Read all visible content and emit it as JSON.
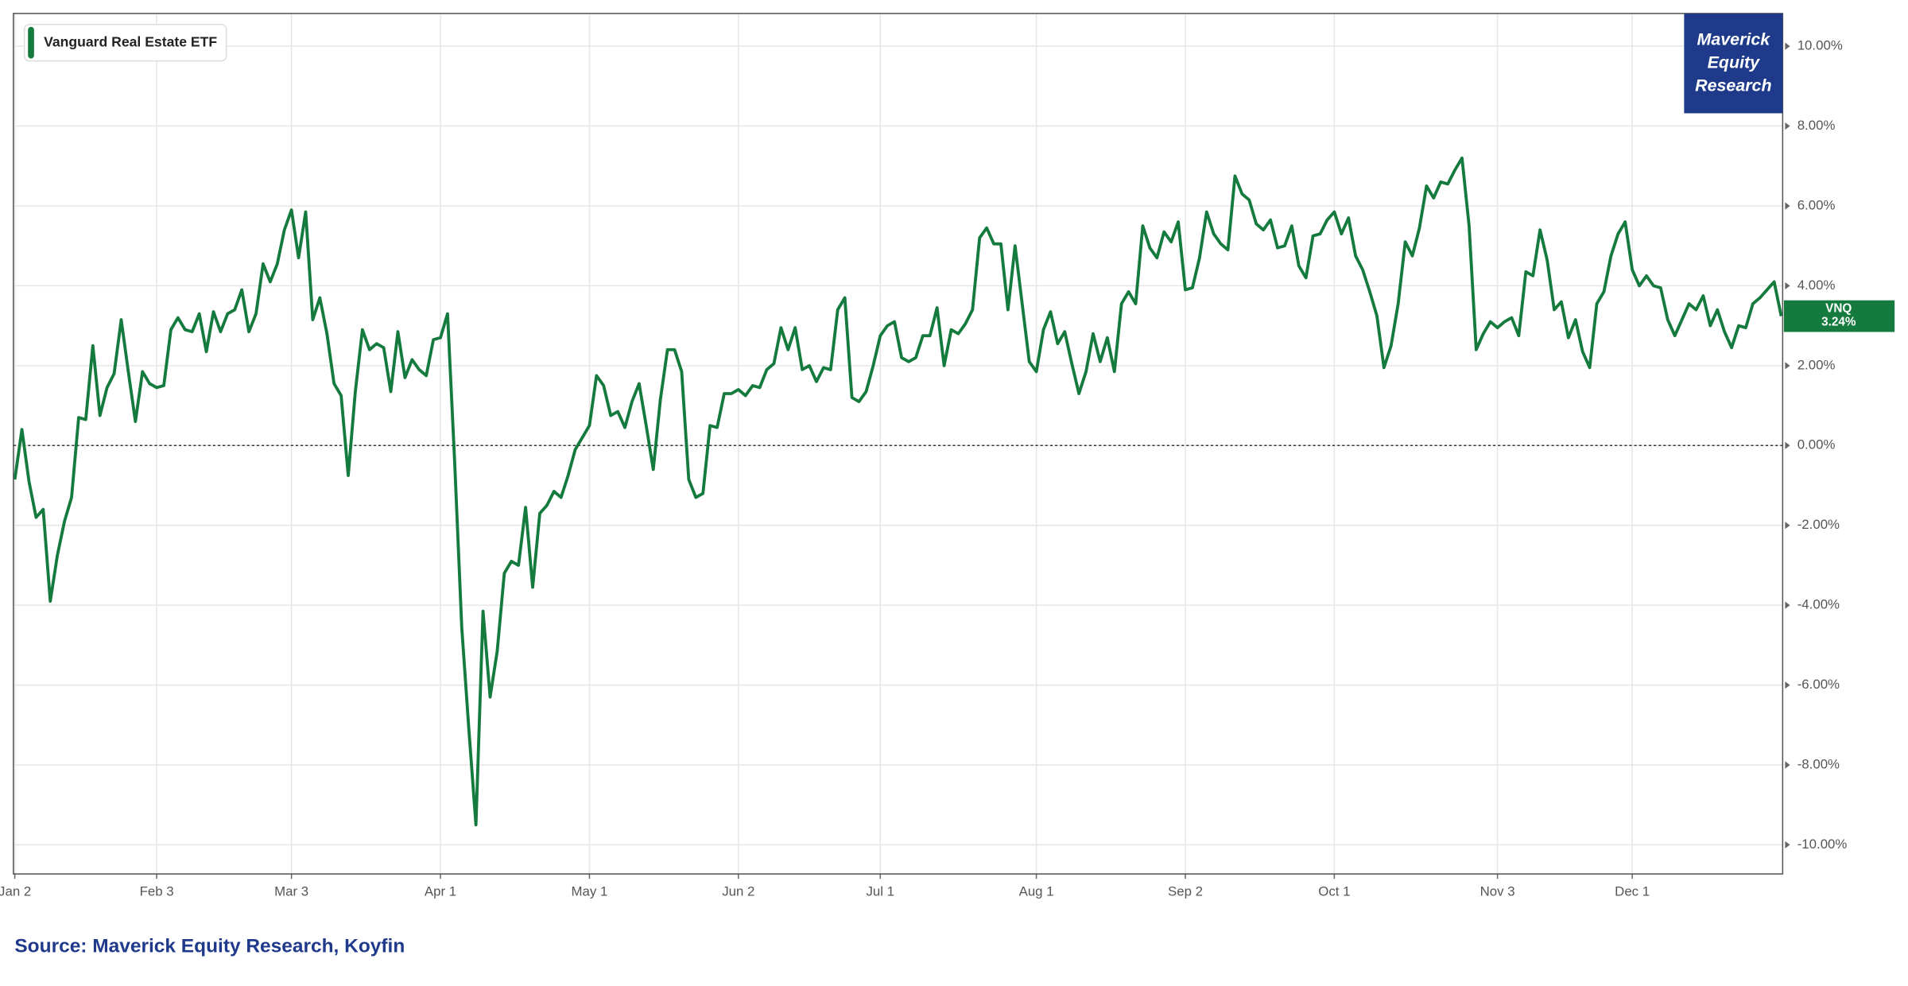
{
  "chart_data": {
    "type": "line",
    "legend_position": "top-left",
    "grid": true,
    "zero_line": true,
    "logo": [
      "Maverick",
      "Equity",
      "Research"
    ],
    "source": "Source: Maverick Equity Research, Koyfin",
    "end_tag": {
      "text": "VNQ",
      "label": "3.24%"
    },
    "xlim": [
      -0.2,
      249.2
    ],
    "xticks": [
      {
        "value": 0,
        "label": "Jan 2"
      },
      {
        "value": 20,
        "label": "Feb 3"
      },
      {
        "value": 39,
        "label": "Mar 3"
      },
      {
        "value": 60,
        "label": "Apr 1"
      },
      {
        "value": 81,
        "label": "May 1"
      },
      {
        "value": 102,
        "label": "Jun 2"
      },
      {
        "value": 122,
        "label": "Jul 1"
      },
      {
        "value": 144,
        "label": "Aug 1"
      },
      {
        "value": 165,
        "label": "Sep 2"
      },
      {
        "value": 186,
        "label": "Oct 1"
      },
      {
        "value": 209,
        "label": "Nov 3"
      },
      {
        "value": 228,
        "label": "Dec 1"
      }
    ],
    "ylim": [
      -10.73,
      10.82
    ],
    "yticks": [
      {
        "value": 10,
        "label": "10.00%"
      },
      {
        "value": 8,
        "label": "8.00%"
      },
      {
        "value": 6,
        "label": "6.00%"
      },
      {
        "value": 4,
        "label": "4.00%"
      },
      {
        "value": 2,
        "label": "2.00%"
      },
      {
        "value": 0,
        "label": "0.00%"
      },
      {
        "value": -2,
        "label": "-2.00%"
      },
      {
        "value": -4,
        "label": "-4.00%"
      },
      {
        "value": -6,
        "label": "-6.00%"
      },
      {
        "value": -8,
        "label": "-8.00%"
      },
      {
        "value": -10,
        "label": "-10.00%"
      }
    ],
    "series": [
      {
        "name": "Vanguard Real Estate ETF",
        "color": "#157a3e",
        "values": [
          -0.85,
          0.4,
          -0.9,
          -1.8,
          -1.6,
          -3.9,
          -2.75,
          -1.9,
          -1.3,
          0.7,
          0.65,
          2.5,
          0.75,
          1.45,
          1.8,
          3.15,
          1.85,
          0.6,
          1.85,
          1.55,
          1.45,
          1.5,
          2.9,
          3.2,
          2.9,
          2.85,
          3.3,
          2.35,
          3.35,
          2.85,
          3.3,
          3.4,
          3.9,
          2.85,
          3.3,
          4.55,
          4.1,
          4.55,
          5.4,
          5.9,
          4.7,
          5.85,
          3.15,
          3.7,
          2.8,
          1.55,
          1.25,
          -0.75,
          1.35,
          2.9,
          2.4,
          2.55,
          2.45,
          1.35,
          2.85,
          1.7,
          2.15,
          1.9,
          1.75,
          2.65,
          2.7,
          3.3,
          -0.4,
          -4.55,
          -7.1,
          -9.5,
          -4.15,
          -6.3,
          -5.15,
          -3.2,
          -2.9,
          -3.0,
          -1.55,
          -3.55,
          -1.7,
          -1.5,
          -1.15,
          -1.3,
          -0.75,
          -0.1,
          0.2,
          0.5,
          1.75,
          1.5,
          0.75,
          0.85,
          0.45,
          1.1,
          1.55,
          0.5,
          -0.6,
          1.15,
          2.4,
          2.4,
          1.85,
          -0.85,
          -1.3,
          -1.2,
          0.5,
          0.45,
          1.3,
          1.3,
          1.4,
          1.25,
          1.5,
          1.45,
          1.9,
          2.05,
          2.95,
          2.4,
          2.95,
          1.9,
          2.0,
          1.6,
          1.95,
          1.9,
          3.4,
          3.7,
          1.2,
          1.1,
          1.35,
          2.0,
          2.75,
          3.0,
          3.1,
          2.2,
          2.1,
          2.2,
          2.75,
          2.75,
          3.45,
          2.0,
          2.9,
          2.8,
          3.05,
          3.4,
          5.2,
          5.45,
          5.05,
          5.05,
          3.4,
          5.0,
          3.55,
          2.1,
          1.85,
          2.9,
          3.35,
          2.55,
          2.85,
          2.05,
          1.3,
          1.85,
          2.8,
          2.1,
          2.7,
          1.85,
          3.55,
          3.85,
          3.55,
          5.5,
          4.95,
          4.7,
          5.35,
          5.1,
          5.6,
          3.9,
          3.95,
          4.7,
          5.85,
          5.3,
          5.05,
          4.9,
          6.75,
          6.3,
          6.15,
          5.55,
          5.4,
          5.65,
          4.95,
          5.0,
          5.5,
          4.5,
          4.2,
          5.25,
          5.3,
          5.65,
          5.85,
          5.3,
          5.7,
          4.75,
          4.4,
          3.85,
          3.25,
          1.95,
          2.5,
          3.55,
          5.1,
          4.75,
          5.45,
          6.5,
          6.2,
          6.6,
          6.55,
          6.9,
          7.2,
          5.5,
          2.4,
          2.8,
          3.1,
          2.95,
          3.1,
          3.2,
          2.75,
          4.35,
          4.25,
          5.4,
          4.65,
          3.4,
          3.6,
          2.7,
          3.15,
          2.35,
          1.95,
          3.55,
          3.85,
          4.75,
          5.3,
          5.6,
          4.4,
          4.0,
          4.25,
          4.0,
          3.95,
          3.15,
          2.75,
          3.15,
          3.55,
          3.4,
          3.75,
          3.0,
          3.4,
          2.85,
          2.45,
          3.0,
          2.95,
          3.55,
          3.7,
          3.9,
          4.1,
          3.24
        ]
      }
    ]
  }
}
